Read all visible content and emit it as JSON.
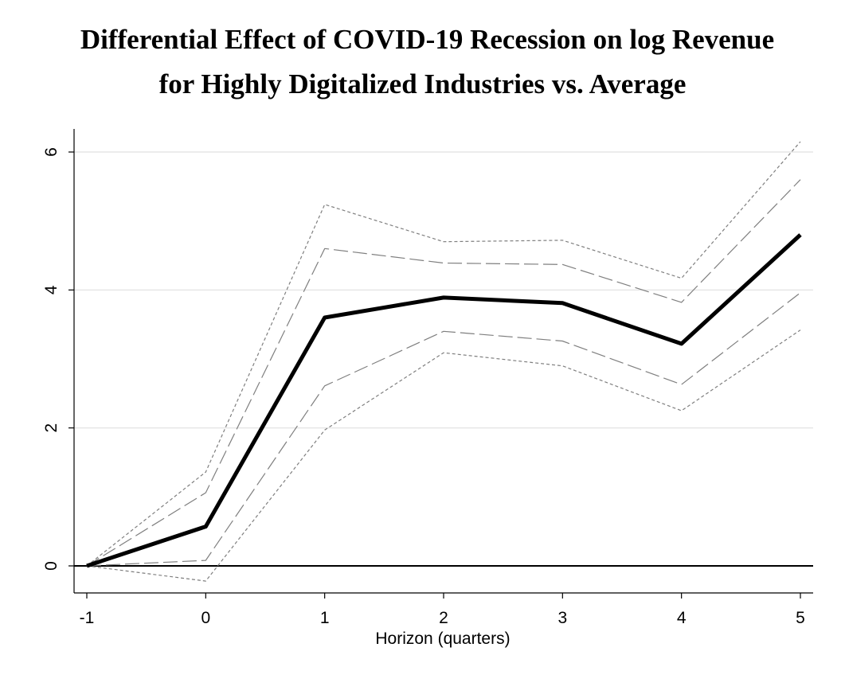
{
  "chart_data": {
    "type": "line",
    "title_line1": "Differential Effect of COVID-19 Recession on log Revenue",
    "title_line2": "for Highly Digitalized Industries vs. Average",
    "xlabel": "Horizon (quarters)",
    "ylabel": "",
    "x": [
      -1,
      0,
      1,
      2,
      3,
      4,
      5
    ],
    "xlim": [
      -1.1,
      5.1
    ],
    "ylim": [
      -0.4,
      6.35
    ],
    "xticks": [
      "-1",
      "0",
      "1",
      "2",
      "3",
      "4",
      "5"
    ],
    "yticks": [
      "0",
      "2",
      "4",
      "6"
    ],
    "grid": true,
    "reference_line_y": 0,
    "series": [
      {
        "values": [
          0,
          0.57,
          3.6,
          3.89,
          3.81,
          3.22,
          4.8
        ],
        "style": "solid-thick"
      },
      {
        "values": [
          0,
          1.06,
          4.6,
          4.39,
          4.37,
          3.82,
          5.6
        ],
        "style": "long-dash"
      },
      {
        "values": [
          0,
          0.08,
          2.61,
          3.4,
          3.26,
          2.63,
          3.96
        ],
        "style": "long-dash"
      },
      {
        "values": [
          0,
          1.36,
          5.24,
          4.7,
          4.72,
          4.17,
          6.15
        ],
        "style": "short-dash"
      },
      {
        "values": [
          0,
          -0.22,
          1.97,
          3.09,
          2.9,
          2.25,
          3.42
        ],
        "style": "short-dash"
      }
    ],
    "colors": {
      "line": "#000000",
      "grid": "#e6e6e6",
      "band": "#7f7f7f"
    }
  }
}
